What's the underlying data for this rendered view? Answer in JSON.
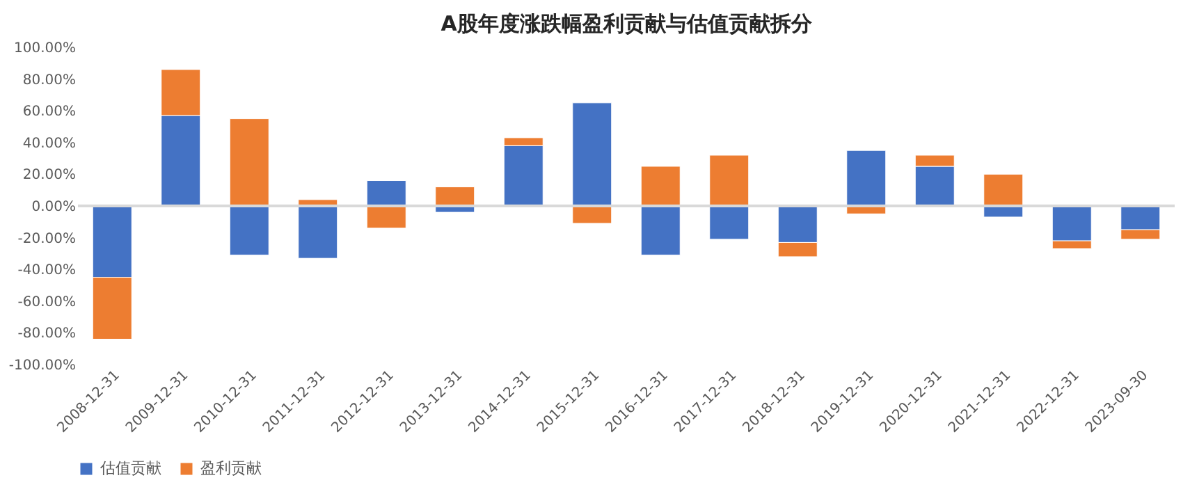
{
  "chart_data": {
    "type": "bar",
    "title": "A股年度涨跌幅盈利贡献与估值贡献拆分",
    "stacked": true,
    "categories": [
      "2008-12-31",
      "2009-12-31",
      "2010-12-31",
      "2011-12-31",
      "2012-12-31",
      "2013-12-31",
      "2014-12-31",
      "2015-12-31",
      "2016-12-31",
      "2017-12-31",
      "2018-12-31",
      "2019-12-31",
      "2020-12-31",
      "2021-12-31",
      "2022-12-31",
      "2023-09-30"
    ],
    "series": [
      {
        "name": "估值贡献",
        "color": "#4472c4",
        "values": [
          -45,
          57,
          -31,
          -33,
          16,
          -4,
          38,
          65,
          -31,
          -21,
          -23,
          35,
          25,
          -7,
          -22,
          -15
        ]
      },
      {
        "name": "盈利贡献",
        "color": "#ed7d31",
        "values": [
          -39,
          29,
          55,
          4,
          -14,
          12,
          5,
          -11,
          25,
          32,
          -9,
          -5,
          7,
          20,
          -5,
          -6
        ]
      }
    ],
    "ylim": [
      -100,
      100
    ],
    "yticks": [
      {
        "value": -100,
        "label": "-100.00%"
      },
      {
        "value": -80,
        "label": "-80.00%"
      },
      {
        "value": -60,
        "label": "-60.00%"
      },
      {
        "value": -40,
        "label": "-40.00%"
      },
      {
        "value": -20,
        "label": "-20.00%"
      },
      {
        "value": 0,
        "label": "0.00%"
      },
      {
        "value": 20,
        "label": "20.00%"
      },
      {
        "value": 40,
        "label": "40.00%"
      },
      {
        "value": 60,
        "label": "60.00%"
      },
      {
        "value": 80,
        "label": "80.00%"
      },
      {
        "value": 100,
        "label": "100.00%"
      }
    ],
    "ref_lines": [
      {
        "axis": "y",
        "value": 0,
        "color": "#d9d9d9"
      }
    ],
    "grid": false,
    "legend": "bottom"
  }
}
